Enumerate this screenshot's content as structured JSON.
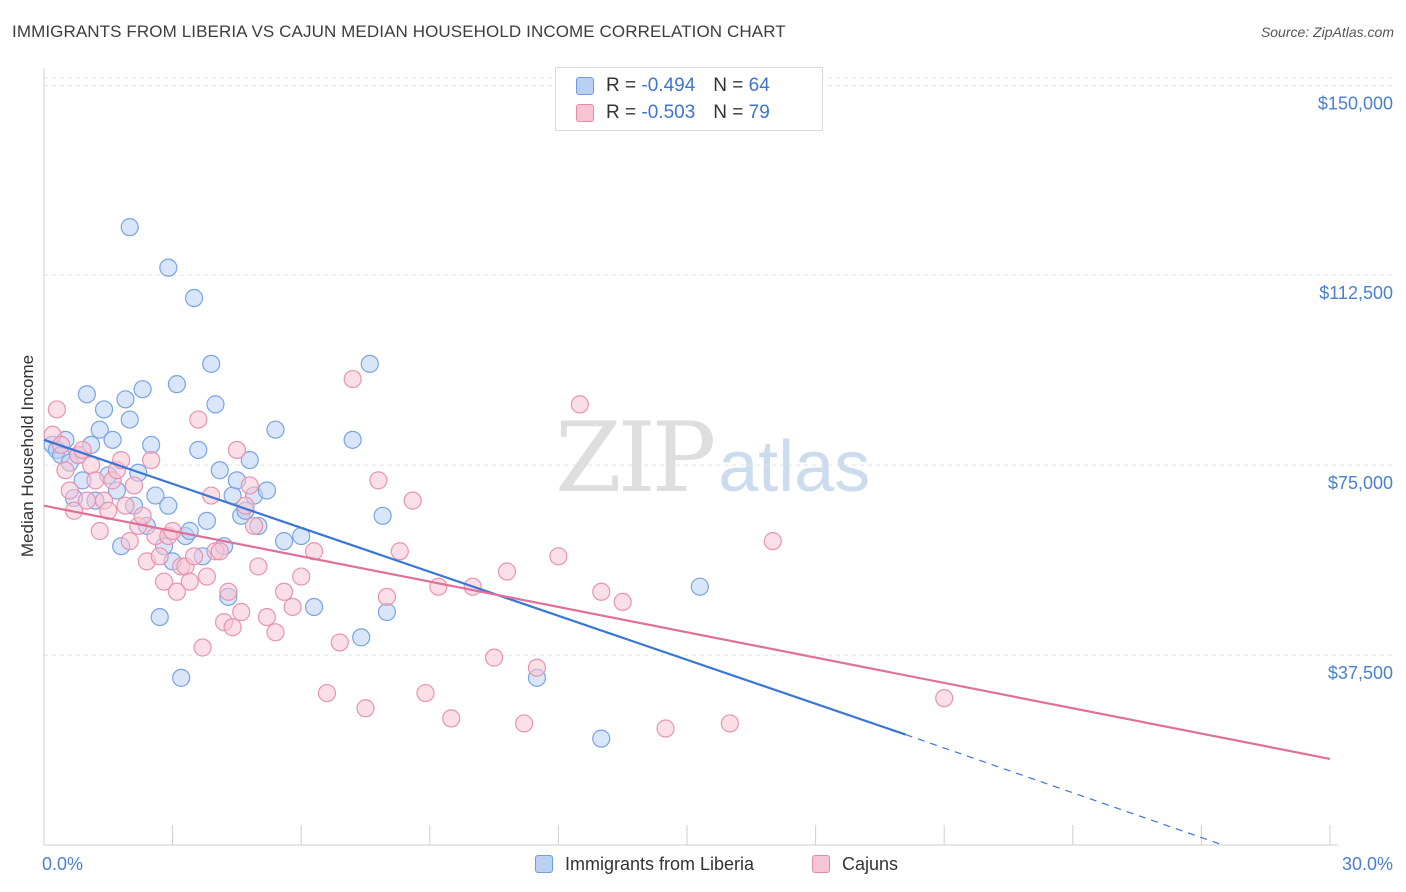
{
  "title": "IMMIGRANTS FROM LIBERIA VS CAJUN MEDIAN HOUSEHOLD INCOME CORRELATION CHART",
  "source": "Source: ZipAtlas.com",
  "watermark": {
    "zip": "ZIP",
    "atlas": "atlas"
  },
  "colors": {
    "blue": "#3a76d6",
    "pink": "#e0709a",
    "blue_fill": "#b9d0f2",
    "pink_fill": "#f7c4d4",
    "axis_text": "#4a7fd0"
  },
  "legend": {
    "rows": [
      {
        "r_label": "R =",
        "r_value": "-0.494",
        "n_label": "N =",
        "n_value": "64"
      },
      {
        "r_label": "R =",
        "r_value": "-0.503",
        "n_label": "N =",
        "n_value": "79"
      }
    ]
  },
  "bottom_legend": {
    "series_a": "Immigrants from Liberia",
    "series_b": "Cajuns"
  },
  "chart_data": {
    "type": "scatter",
    "title": "IMMIGRANTS FROM LIBERIA VS CAJUN MEDIAN HOUSEHOLD INCOME CORRELATION CHART",
    "xlabel": "",
    "ylabel": "Median Household Income",
    "xlim": [
      0,
      30
    ],
    "ylim": [
      0,
      155000
    ],
    "x_tick_labels": [
      "0.0%",
      "30.0%"
    ],
    "y_ticks": [
      {
        "value": 150000,
        "label": "$150,000"
      },
      {
        "value": 112500,
        "label": "$112,500"
      },
      {
        "value": 75000,
        "label": "$75,000"
      },
      {
        "value": 37500,
        "label": "$37,500"
      }
    ],
    "grid": true,
    "legend_position": "top-center",
    "series": [
      {
        "name": "Immigrants from Liberia",
        "color": "#3a76d6",
        "r": -0.494,
        "n": 64,
        "trend": {
          "x0": 0,
          "y0": 80000,
          "x1": 20.1,
          "y1": 21800,
          "dashed_to_x": 27.5,
          "dashed_to_y": 0
        },
        "points": [
          [
            0.2,
            79000
          ],
          [
            0.3,
            78000
          ],
          [
            0.4,
            77000
          ],
          [
            0.5,
            80000
          ],
          [
            0.6,
            75500
          ],
          [
            0.7,
            68500
          ],
          [
            0.8,
            77000
          ],
          [
            0.9,
            72000
          ],
          [
            1.0,
            89000
          ],
          [
            1.1,
            79000
          ],
          [
            1.2,
            68000
          ],
          [
            1.3,
            82000
          ],
          [
            1.4,
            86000
          ],
          [
            1.5,
            73000
          ],
          [
            1.6,
            80000
          ],
          [
            1.7,
            70000
          ],
          [
            1.8,
            59000
          ],
          [
            1.9,
            88000
          ],
          [
            2.0,
            84000
          ],
          [
            2.1,
            67000
          ],
          [
            2.2,
            73500
          ],
          [
            2.3,
            90000
          ],
          [
            2.4,
            63000
          ],
          [
            2.5,
            79000
          ],
          [
            2.6,
            69000
          ],
          [
            2.7,
            45000
          ],
          [
            2.8,
            59000
          ],
          [
            2.9,
            67000
          ],
          [
            3.0,
            56000
          ],
          [
            3.1,
            91000
          ],
          [
            3.2,
            33000
          ],
          [
            3.3,
            61000
          ],
          [
            3.4,
            62000
          ],
          [
            3.5,
            108000
          ],
          [
            3.6,
            78000
          ],
          [
            3.7,
            57000
          ],
          [
            3.8,
            64000
          ],
          [
            3.9,
            95000
          ],
          [
            4.0,
            87000
          ],
          [
            4.1,
            74000
          ],
          [
            4.2,
            59000
          ],
          [
            4.3,
            49000
          ],
          [
            4.4,
            69000
          ],
          [
            4.5,
            72000
          ],
          [
            4.6,
            65000
          ],
          [
            4.7,
            66000
          ],
          [
            4.8,
            76000
          ],
          [
            4.9,
            69000
          ],
          [
            5.0,
            63000
          ],
          [
            5.2,
            70000
          ],
          [
            5.4,
            82000
          ],
          [
            5.6,
            60000
          ],
          [
            6.0,
            61000
          ],
          [
            6.3,
            47000
          ],
          [
            7.2,
            80000
          ],
          [
            7.4,
            41000
          ],
          [
            7.6,
            95000
          ],
          [
            7.9,
            65000
          ],
          [
            8.0,
            46000
          ],
          [
            2.0,
            122000
          ],
          [
            2.9,
            114000
          ],
          [
            11.5,
            33000
          ],
          [
            13.0,
            21000
          ],
          [
            15.3,
            51000
          ]
        ]
      },
      {
        "name": "Cajuns",
        "color": "#e0709a",
        "r": -0.503,
        "n": 79,
        "trend": {
          "x0": 0,
          "y0": 67000,
          "x1": 30,
          "y1": 17000
        },
        "points": [
          [
            0.2,
            81000
          ],
          [
            0.3,
            86000
          ],
          [
            0.4,
            79000
          ],
          [
            0.5,
            74000
          ],
          [
            0.6,
            70000
          ],
          [
            0.7,
            66000
          ],
          [
            0.8,
            77000
          ],
          [
            0.9,
            78000
          ],
          [
            1.0,
            68000
          ],
          [
            1.1,
            75000
          ],
          [
            1.2,
            72000
          ],
          [
            1.3,
            62000
          ],
          [
            1.4,
            68000
          ],
          [
            1.5,
            66000
          ],
          [
            1.6,
            72000
          ],
          [
            1.7,
            74000
          ],
          [
            1.8,
            76000
          ],
          [
            1.9,
            67000
          ],
          [
            2.0,
            60000
          ],
          [
            2.1,
            71000
          ],
          [
            2.2,
            63000
          ],
          [
            2.3,
            65000
          ],
          [
            2.4,
            56000
          ],
          [
            2.5,
            76000
          ],
          [
            2.6,
            61000
          ],
          [
            2.7,
            57000
          ],
          [
            2.8,
            52000
          ],
          [
            2.9,
            61000
          ],
          [
            3.0,
            62000
          ],
          [
            3.1,
            50000
          ],
          [
            3.2,
            55000
          ],
          [
            3.3,
            55000
          ],
          [
            3.4,
            52000
          ],
          [
            3.5,
            57000
          ],
          [
            3.6,
            84000
          ],
          [
            3.7,
            39000
          ],
          [
            3.8,
            53000
          ],
          [
            3.9,
            69000
          ],
          [
            4.0,
            58000
          ],
          [
            4.1,
            58000
          ],
          [
            4.2,
            44000
          ],
          [
            4.3,
            50000
          ],
          [
            4.4,
            43000
          ],
          [
            4.5,
            78000
          ],
          [
            4.6,
            46000
          ],
          [
            4.7,
            67000
          ],
          [
            4.8,
            71000
          ],
          [
            4.9,
            63000
          ],
          [
            5.0,
            55000
          ],
          [
            5.2,
            45000
          ],
          [
            5.4,
            42000
          ],
          [
            5.6,
            50000
          ],
          [
            5.8,
            47000
          ],
          [
            6.0,
            53000
          ],
          [
            6.3,
            58000
          ],
          [
            6.6,
            30000
          ],
          [
            6.9,
            40000
          ],
          [
            7.2,
            92000
          ],
          [
            7.5,
            27000
          ],
          [
            7.8,
            72000
          ],
          [
            8.0,
            49000
          ],
          [
            8.3,
            58000
          ],
          [
            8.6,
            68000
          ],
          [
            8.9,
            30000
          ],
          [
            9.2,
            51000
          ],
          [
            9.5,
            25000
          ],
          [
            10.0,
            51000
          ],
          [
            10.5,
            37000
          ],
          [
            10.8,
            54000
          ],
          [
            11.2,
            24000
          ],
          [
            11.5,
            35000
          ],
          [
            12.0,
            57000
          ],
          [
            12.5,
            87000
          ],
          [
            13.0,
            50000
          ],
          [
            13.5,
            48000
          ],
          [
            14.5,
            23000
          ],
          [
            16.0,
            24000
          ],
          [
            17.0,
            60000
          ],
          [
            21.0,
            29000
          ]
        ]
      }
    ]
  }
}
